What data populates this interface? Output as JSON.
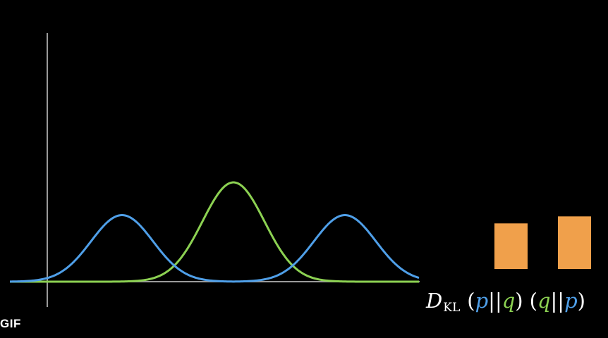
{
  "watermark": {
    "text": "GIF"
  },
  "colors": {
    "background": "#000000",
    "axis": "#9a9a9a",
    "p_curve": "#4f9fe8",
    "q_curve": "#8cd152",
    "bar": "#f0a04b",
    "label": "#ffffff"
  },
  "distributions": {
    "p": {
      "type": "bimodal",
      "color_key": "p_curve",
      "peak_centers": [
        -1.0,
        1.0
      ],
      "relative_peak_height": 0.67
    },
    "q": {
      "type": "unimodal",
      "color_key": "q_curve",
      "peak_centers": [
        0.0
      ],
      "relative_peak_height": 1.0
    }
  },
  "kl_bars": {
    "values": [
      0.78,
      0.9
    ],
    "order": [
      "p||q",
      "q||p"
    ]
  },
  "kl_label": {
    "D": "D",
    "sub": "KL",
    "open1": "(",
    "p1": "p",
    "sep1": "||",
    "q1": "q",
    "close1": ")",
    "open2": "(",
    "q2": "q",
    "sep2": "||",
    "p2": "p",
    "close2": ")"
  }
}
